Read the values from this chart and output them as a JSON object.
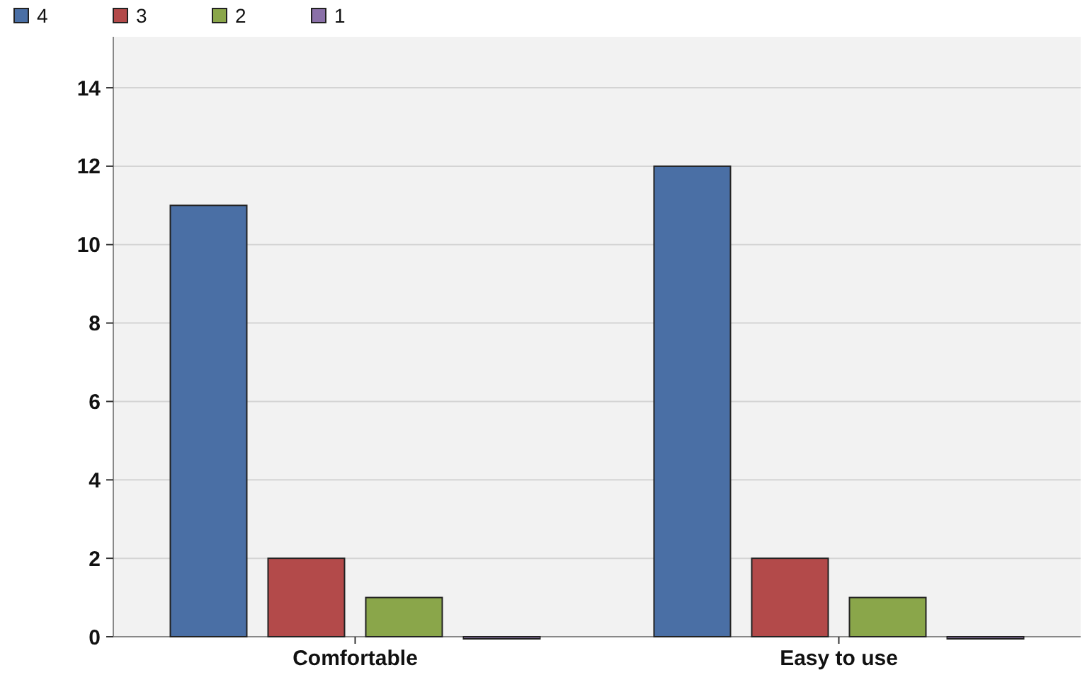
{
  "chart_data": {
    "type": "bar",
    "categories": [
      "Comfortable",
      "Easy to use"
    ],
    "series": [
      {
        "name": "4",
        "color": "#4a6fa5",
        "values": [
          11,
          12
        ]
      },
      {
        "name": "3",
        "color": "#b34a4a",
        "values": [
          2,
          2
        ]
      },
      {
        "name": "2",
        "color": "#8aa64a",
        "values": [
          1,
          1
        ]
      },
      {
        "name": "1",
        "color": "#8a70a8",
        "values": [
          0,
          0
        ]
      }
    ],
    "ylim": [
      0,
      15.3
    ],
    "yticks": [
      0,
      2,
      4,
      6,
      8,
      10,
      12,
      14
    ],
    "grid": "y",
    "legend": "top left"
  }
}
